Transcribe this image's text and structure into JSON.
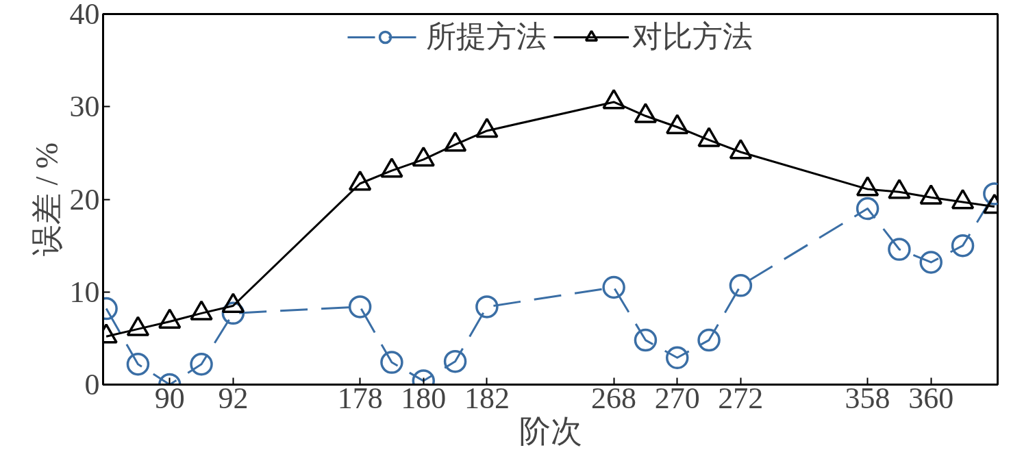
{
  "chart_data": {
    "type": "line",
    "xlabel": "阶次",
    "ylabel": "误差 / %",
    "categories": [
      null,
      null,
      "90",
      null,
      "92",
      null,
      null,
      null,
      "178",
      null,
      "180",
      null,
      "182",
      null,
      null,
      null,
      "268",
      null,
      "270",
      null,
      "272",
      null,
      null,
      null,
      "358",
      null,
      "360",
      null,
      null
    ],
    "series": [
      {
        "name": "所提方法",
        "color": "#3a6ea5",
        "marker": "circle",
        "line_style": "dashed",
        "values": [
          8.2,
          2.2,
          0,
          2.2,
          7.7,
          null,
          null,
          null,
          8.4,
          2.4,
          0.4,
          2.5,
          8.4,
          null,
          null,
          null,
          10.5,
          4.8,
          2.9,
          4.8,
          10.7,
          null,
          null,
          null,
          19.0,
          14.6,
          13.2,
          15.0,
          20.6
        ]
      },
      {
        "name": "对比方法",
        "color": "#000000",
        "marker": "triangle",
        "line_style": "solid",
        "values": [
          5.2,
          6.0,
          6.8,
          7.7,
          8.5,
          null,
          null,
          null,
          21.7,
          23.1,
          24.3,
          25.9,
          27.4,
          null,
          null,
          null,
          30.5,
          29.0,
          27.8,
          26.4,
          25.1,
          null,
          null,
          null,
          21.1,
          20.8,
          20.2,
          19.7,
          19.2
        ]
      }
    ],
    "ylim": [
      0,
      40
    ],
    "yticks": [
      0,
      10,
      20,
      30,
      40
    ],
    "grid": false,
    "legend": "top"
  }
}
